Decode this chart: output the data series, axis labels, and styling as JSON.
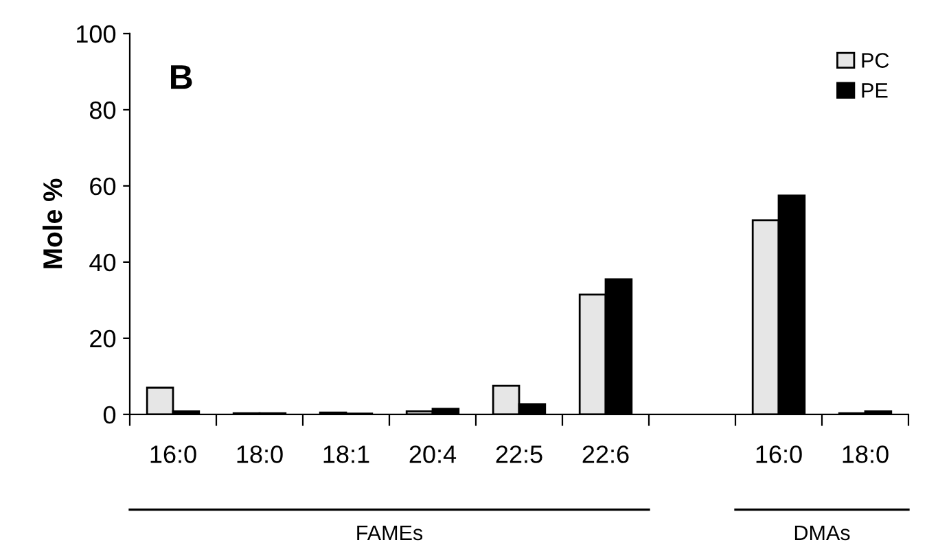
{
  "chart_data": {
    "type": "bar",
    "ylabel": "Mole %",
    "categories": [
      "16:0",
      "18:0",
      "18:1",
      "20:4",
      "22:5",
      "22:6",
      null,
      "16:0",
      "18:0"
    ],
    "series": [
      {
        "name": "PC",
        "color": "#e6e6e6",
        "values": [
          7,
          0.3,
          0.5,
          0.8,
          7.5,
          31.5,
          null,
          51,
          0.3
        ]
      },
      {
        "name": "PE",
        "color": "#000000",
        "values": [
          0.8,
          0.3,
          0.2,
          1.5,
          2.7,
          35.5,
          null,
          57.5,
          0.8
        ]
      }
    ],
    "ylim": [
      0,
      100
    ],
    "yticks": [
      0,
      20,
      40,
      60,
      80,
      100
    ],
    "grid": false,
    "legend": "top right",
    "annotations": [
      "B",
      "FAMEs",
      "DMAs"
    ]
  }
}
